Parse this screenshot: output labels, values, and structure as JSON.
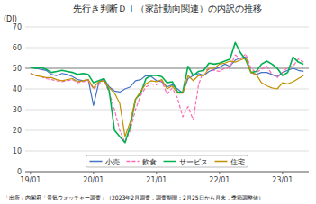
{
  "chart_data": {
    "type": "line",
    "title": "先行き判断ＤＩ（家計動向関連）の内訳の推移",
    "y_label": "(DI)",
    "annotations": [
      "「出所」内閣府「景気ウォッチャー調査」（2023年2月調査，調査期間：2月25日から月末，季節調整値）"
    ],
    "categories": [
      "19/01",
      null,
      null,
      null,
      null,
      null,
      null,
      null,
      null,
      null,
      null,
      null,
      "20/01",
      null,
      null,
      null,
      null,
      null,
      null,
      null,
      null,
      null,
      null,
      null,
      "21/01",
      null,
      null,
      null,
      null,
      null,
      null,
      null,
      null,
      null,
      null,
      null,
      "22/01",
      null,
      null,
      null,
      null,
      null,
      null,
      null,
      null,
      null,
      null,
      null,
      "23/01",
      null,
      null,
      null,
      null
    ],
    "series": [
      {
        "name": "小売",
        "color": "#4472C4",
        "line_style": "solid",
        "values": [
          50.5,
          50.0,
          49.5,
          49.0,
          47.0,
          46.5,
          47.5,
          47.0,
          46.0,
          44.5,
          44.0,
          44.5,
          32.0,
          43.0,
          45.0,
          41.0,
          39.0,
          38.5,
          40.0,
          41.0,
          44.0,
          44.5,
          46.5,
          46.0,
          44.0,
          43.5,
          41.0,
          42.0,
          40.0,
          38.0,
          45.0,
          46.5,
          47.5,
          46.5,
          48.5,
          49.5,
          50.5,
          52.0,
          51.0,
          54.0,
          55.0,
          55.5,
          48.0,
          47.0,
          48.0,
          48.0,
          47.0,
          46.0,
          48.0,
          49.0,
          50.0,
          49.0,
          48.5
        ]
      },
      {
        "name": "飲食",
        "color": "#FF69B4",
        "line_style": "dashed",
        "values": [
          47.5,
          46.5,
          46.0,
          45.0,
          44.5,
          44.0,
          43.5,
          44.0,
          44.5,
          43.0,
          43.5,
          44.0,
          40.0,
          42.0,
          44.5,
          38.0,
          30.0,
          20.0,
          14.0,
          20.0,
          30.0,
          37.0,
          41.0,
          42.5,
          42.0,
          44.0,
          37.5,
          40.5,
          35.5,
          26.5,
          31.5,
          25.0,
          42.0,
          49.0,
          49.5,
          49.0,
          48.5,
          50.0,
          50.5,
          56.5,
          54.5,
          57.0,
          50.0,
          48.0,
          49.5,
          51.0,
          47.0,
          45.5,
          48.0,
          50.5,
          51.0,
          54.5,
          53.0
        ]
      },
      {
        "name": "サービス",
        "color": "#00B050",
        "line_style": "solid",
        "values": [
          50.5,
          50.0,
          50.5,
          49.5,
          48.0,
          48.5,
          49.0,
          48.5,
          48.0,
          47.0,
          47.5,
          47.0,
          43.0,
          44.0,
          45.0,
          39.0,
          20.0,
          17.0,
          14.0,
          22.0,
          35.0,
          38.0,
          45.0,
          46.5,
          46.5,
          46.0,
          43.0,
          43.5,
          38.5,
          38.5,
          51.0,
          46.5,
          48.5,
          49.0,
          52.5,
          52.0,
          52.5,
          53.5,
          54.5,
          62.5,
          57.5,
          54.0,
          48.0,
          48.5,
          52.0,
          53.5,
          52.0,
          50.0,
          46.5,
          48.0,
          55.5,
          53.0,
          52.0
        ]
      },
      {
        "name": "住宅",
        "color": "#C09000",
        "line_style": "solid",
        "values": [
          47.5,
          46.5,
          46.0,
          45.5,
          45.5,
          44.5,
          44.0,
          44.5,
          45.0,
          43.5,
          44.0,
          44.5,
          40.5,
          43.5,
          44.0,
          40.5,
          38.0,
          33.0,
          17.0,
          24.0,
          35.0,
          39.0,
          42.5,
          44.0,
          43.5,
          44.5,
          40.0,
          41.5,
          38.0,
          38.0,
          46.5,
          44.0,
          46.5,
          46.5,
          50.0,
          50.0,
          52.0,
          52.5,
          53.5,
          53.0,
          54.0,
          55.0,
          48.0,
          47.0,
          43.0,
          41.5,
          40.5,
          40.0,
          43.0,
          42.5,
          43.5,
          45.0,
          46.5
        ]
      }
    ],
    "hline": 50,
    "ylim": [
      0,
      70
    ],
    "yticks": [
      0,
      10,
      20,
      30,
      40,
      50,
      60,
      70
    ],
    "grid": true,
    "legend": "lower center"
  }
}
